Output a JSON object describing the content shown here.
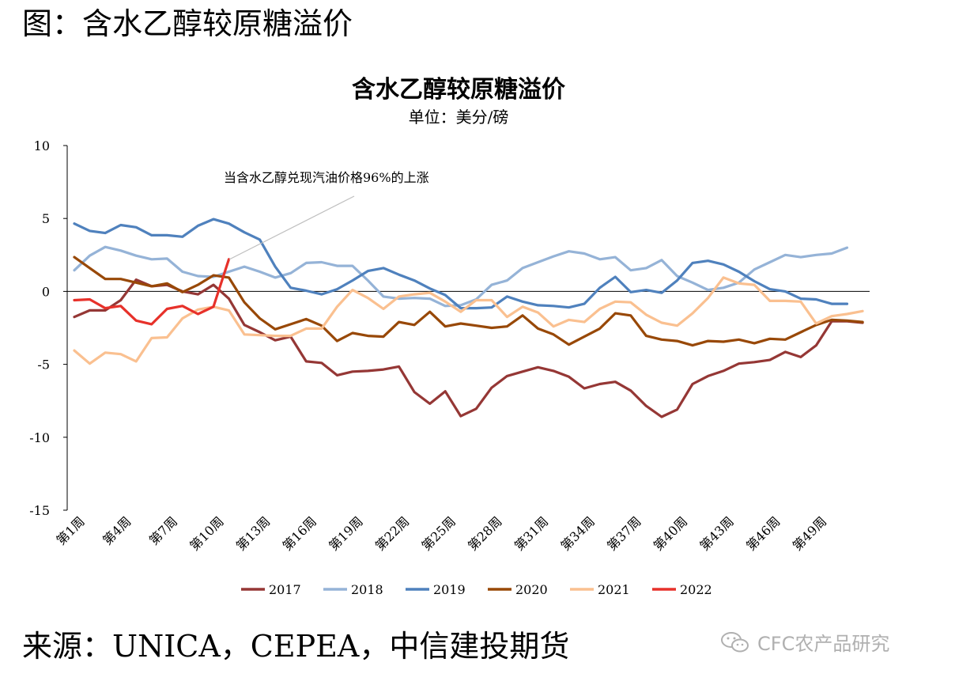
{
  "figure_title": "图：含水乙醇较原糖溢价",
  "source": "来源：UNICA，CEPEA，中信建投期货",
  "watermark": "CFC农产品研究",
  "chart_data": {
    "type": "line",
    "title": "含水乙醇较原糖溢价",
    "unit": "单位：美分/磅",
    "ylim": [
      -15,
      10
    ],
    "yticks": [
      10,
      5,
      0,
      -5,
      -10,
      -15
    ],
    "x_count": 52,
    "x_ticks": [
      "第1周",
      "第4周",
      "第7周",
      "第10周",
      "第13周",
      "第16周",
      "第19周",
      "第22周",
      "第25周",
      "第28周",
      "第31周",
      "第34周",
      "第37周",
      "第40周",
      "第43周",
      "第46周",
      "第49周"
    ],
    "annotation": "当含水乙醇兑现汽油价格96%的上涨",
    "series": [
      {
        "name": "2017",
        "color": "#953735",
        "values": [
          -1.75,
          -1.3,
          -1.3,
          -0.6,
          0.8,
          0.35,
          0.45,
          0,
          -0.2,
          0.45,
          -0.5,
          -2.3,
          -2.8,
          -3.35,
          -3.1,
          -4.8,
          -4.9,
          -5.75,
          -5.5,
          -5.45,
          -5.35,
          -5.15,
          -6.9,
          -7.7,
          -6.85,
          -8.55,
          -8.05,
          -6.6,
          -5.8,
          -5.5,
          -5.2,
          -5.45,
          -5.85,
          -6.65,
          -6.35,
          -6.2,
          -6.8,
          -7.85,
          -8.6,
          -8.1,
          -6.35,
          -5.8,
          -5.45,
          -4.95,
          -4.85,
          -4.7,
          -4.15,
          -4.5,
          -3.7,
          -2.05,
          -2.05,
          -2.15
        ]
      },
      {
        "name": "2018",
        "color": "#95b3d7",
        "values": [
          1.45,
          2.45,
          3.05,
          2.8,
          2.45,
          2.2,
          2.25,
          1.35,
          1.05,
          1.0,
          1.35,
          1.7,
          1.35,
          0.95,
          1.25,
          1.95,
          2.0,
          1.75,
          1.75,
          0.75,
          -0.35,
          -0.5,
          -0.45,
          -0.5,
          -1.0,
          -0.95,
          -0.55,
          0.45,
          0.75,
          1.6,
          2.0,
          2.4,
          2.75,
          2.6,
          2.2,
          2.35,
          1.45,
          1.6,
          2.15,
          1.05,
          0.6,
          0.1,
          0.25,
          0.6,
          1.5,
          2.0,
          2.5,
          2.35,
          2.5,
          2.6,
          3.0,
          null
        ]
      },
      {
        "name": "2019",
        "color": "#4f81bd",
        "values": [
          4.65,
          4.15,
          4.0,
          4.55,
          4.4,
          3.85,
          3.85,
          3.75,
          4.5,
          4.95,
          4.65,
          4.05,
          3.55,
          1.7,
          0.25,
          0.05,
          -0.2,
          0.15,
          0.75,
          1.4,
          1.6,
          1.15,
          0.75,
          0.2,
          -0.25,
          -1.15,
          -1.15,
          -1.1,
          -0.35,
          -0.7,
          -0.95,
          -1.0,
          -1.1,
          -0.85,
          0.25,
          1.0,
          -0.05,
          0.1,
          -0.1,
          0.75,
          1.95,
          2.1,
          1.85,
          1.35,
          0.7,
          0.15,
          0.0,
          -0.5,
          -0.55,
          -0.85,
          -0.85,
          null
        ]
      },
      {
        "name": "2020",
        "color": "#984807",
        "values": [
          2.35,
          1.6,
          0.85,
          0.85,
          0.6,
          0.35,
          0.55,
          -0.05,
          0.45,
          1.1,
          0.95,
          -0.75,
          -1.85,
          -2.6,
          -2.25,
          -1.9,
          -2.35,
          -3.4,
          -2.85,
          -3.05,
          -3.1,
          -2.1,
          -2.3,
          -1.4,
          -2.4,
          -2.2,
          -2.35,
          -2.5,
          -2.4,
          -1.65,
          -2.55,
          -2.95,
          -3.65,
          -3.1,
          -2.55,
          -1.5,
          -1.65,
          -3.05,
          -3.3,
          -3.4,
          -3.7,
          -3.4,
          -3.45,
          -3.3,
          -3.55,
          -3.25,
          -3.3,
          -2.8,
          -2.3,
          -1.95,
          -2.0,
          -2.1
        ]
      },
      {
        "name": "2021",
        "color": "#fac090",
        "values": [
          -4.05,
          -4.95,
          -4.2,
          -4.3,
          -4.8,
          -3.2,
          -3.15,
          -1.85,
          -1.25,
          -1.05,
          -1.3,
          -2.95,
          -3.0,
          -3.05,
          -3.05,
          -2.55,
          -2.55,
          -1.05,
          0.1,
          -0.45,
          -1.2,
          -0.35,
          -0.2,
          -0.1,
          -0.7,
          -1.4,
          -0.6,
          -0.6,
          -1.75,
          -1.05,
          -1.45,
          -2.4,
          -1.95,
          -2.1,
          -1.2,
          -0.7,
          -0.75,
          -1.6,
          -2.15,
          -2.35,
          -1.5,
          -0.45,
          0.95,
          0.55,
          0.45,
          -0.65,
          -0.65,
          -0.7,
          -2.2,
          -1.7,
          -1.55,
          -1.35
        ]
      },
      {
        "name": "2022",
        "color": "#e7312a",
        "values": [
          -0.6,
          -0.55,
          -1.15,
          -1.0,
          -2.0,
          -2.25,
          -1.2,
          -1.0,
          -1.55,
          -1.05,
          2.2,
          null,
          null,
          null,
          null,
          null,
          null,
          null,
          null,
          null,
          null,
          null,
          null,
          null,
          null,
          null,
          null,
          null,
          null,
          null,
          null,
          null,
          null,
          null,
          null,
          null,
          null,
          null,
          null,
          null,
          null,
          null,
          null,
          null,
          null,
          null,
          null,
          null,
          null,
          null,
          null,
          null
        ]
      }
    ]
  }
}
